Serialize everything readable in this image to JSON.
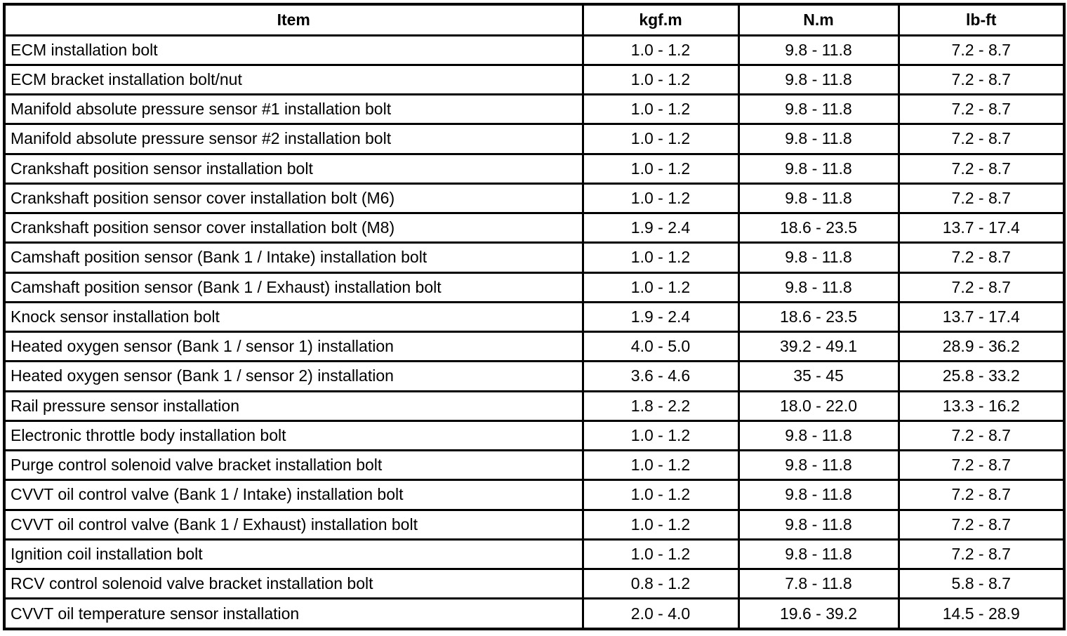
{
  "table": {
    "headers": [
      "Item",
      "kgf.m",
      "N.m",
      "lb-ft"
    ],
    "rows": [
      [
        "ECM installation bolt",
        "1.0 - 1.2",
        "9.8 - 11.8",
        "7.2 - 8.7"
      ],
      [
        "ECM bracket installation bolt/nut",
        "1.0 - 1.2",
        "9.8 - 11.8",
        "7.2 - 8.7"
      ],
      [
        "Manifold absolute pressure sensor #1 installation bolt",
        "1.0 - 1.2",
        "9.8 - 11.8",
        "7.2 - 8.7"
      ],
      [
        "Manifold absolute pressure sensor #2 installation bolt",
        "1.0 - 1.2",
        "9.8 - 11.8",
        "7.2 - 8.7"
      ],
      [
        "Crankshaft position sensor installation bolt",
        "1.0 - 1.2",
        "9.8 - 11.8",
        "7.2 - 8.7"
      ],
      [
        "Crankshaft position sensor cover installation bolt (M6)",
        "1.0 - 1.2",
        "9.8 - 11.8",
        "7.2 - 8.7"
      ],
      [
        "Crankshaft position sensor cover installation bolt (M8)",
        "1.9 - 2.4",
        "18.6 - 23.5",
        "13.7 - 17.4"
      ],
      [
        "Camshaft position sensor (Bank 1 / Intake) installation bolt",
        "1.0 - 1.2",
        "9.8 - 11.8",
        "7.2 - 8.7"
      ],
      [
        "Camshaft position sensor (Bank 1 / Exhaust) installation bolt",
        "1.0 - 1.2",
        "9.8 - 11.8",
        "7.2 - 8.7"
      ],
      [
        "Knock sensor installation bolt",
        "1.9 - 2.4",
        "18.6 - 23.5",
        "13.7 - 17.4"
      ],
      [
        "Heated oxygen sensor (Bank 1 / sensor 1) installation",
        "4.0 - 5.0",
        "39.2 - 49.1",
        "28.9 - 36.2"
      ],
      [
        "Heated oxygen sensor (Bank 1 / sensor 2) installation",
        "3.6 - 4.6",
        "35 - 45",
        "25.8 - 33.2"
      ],
      [
        "Rail pressure sensor installation",
        "1.8 - 2.2",
        "18.0 - 22.0",
        "13.3 - 16.2"
      ],
      [
        "Electronic throttle body installation bolt",
        "1.0 - 1.2",
        "9.8 - 11.8",
        "7.2 - 8.7"
      ],
      [
        "Purge control solenoid valve bracket installation bolt",
        "1.0 - 1.2",
        "9.8 - 11.8",
        "7.2 - 8.7"
      ],
      [
        "CVVT oil control valve (Bank 1 / Intake) installation bolt",
        "1.0 - 1.2",
        "9.8 - 11.8",
        "7.2 - 8.7"
      ],
      [
        "CVVT oil control valve (Bank 1 / Exhaust) installation bolt",
        "1.0 - 1.2",
        "9.8 - 11.8",
        "7.2 - 8.7"
      ],
      [
        "Ignition coil installation bolt",
        "1.0 - 1.2",
        "9.8 - 11.8",
        "7.2 - 8.7"
      ],
      [
        "RCV control solenoid valve bracket installation bolt",
        "0.8 - 1.2",
        "7.8 - 11.8",
        "5.8 - 8.7"
      ],
      [
        "CVVT oil temperature sensor installation",
        "2.0 - 4.0",
        "19.6 - 39.2",
        "14.5 - 28.9"
      ]
    ]
  }
}
